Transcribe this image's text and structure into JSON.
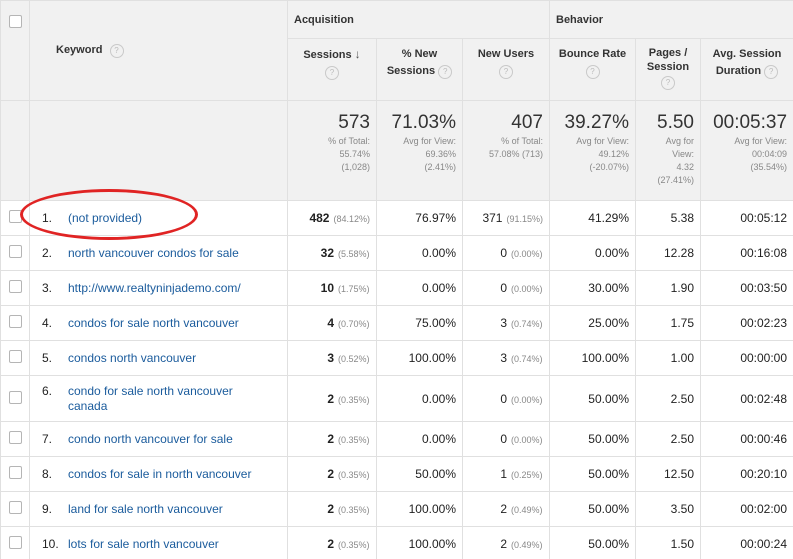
{
  "header": {
    "keyword": "Keyword",
    "help": "?",
    "groups": {
      "acquisition": "Acquisition",
      "behavior": "Behavior"
    },
    "columns": {
      "sessions": "Sessions",
      "new_sessions_1": "% New",
      "new_sessions_2": "Sessions",
      "new_users": "New Users",
      "bounce_rate": "Bounce Rate",
      "pages_1": "Pages /",
      "pages_2": "Session",
      "duration_1": "Avg. Session",
      "duration_2": "Duration"
    },
    "sort_icon": "arrow-down-icon"
  },
  "totals": {
    "sessions": {
      "value": "573",
      "l1": "% of Total:",
      "l2": "55.74%",
      "l3": "(1,028)"
    },
    "new_sessions": {
      "value": "71.03%",
      "l1": "Avg for View:",
      "l2": "69.36%",
      "l3": "(2.41%)"
    },
    "new_users": {
      "value": "407",
      "l1": "% of Total:",
      "l2": "57.08% (713)"
    },
    "bounce_rate": {
      "value": "39.27%",
      "l1": "Avg for View:",
      "l2": "49.12%",
      "l3": "(-20.07%)"
    },
    "pages": {
      "value": "5.50",
      "l1": "Avg for",
      "l2": "View:",
      "l3": "4.32",
      "l4": "(27.41%)"
    },
    "duration": {
      "value": "00:05:37",
      "l1": "Avg for View:",
      "l2": "00:04:09",
      "l3": "(35.54%)"
    }
  },
  "rows": [
    {
      "idx": "1.",
      "keyword": "(not provided)",
      "sessions": "482",
      "sessions_pct": "(84.12%)",
      "new_sessions": "76.97%",
      "new_users": "371",
      "new_users_pct": "(91.15%)",
      "bounce": "41.29%",
      "pages": "5.38",
      "duration": "00:05:12"
    },
    {
      "idx": "2.",
      "keyword": "north vancouver condos for sale",
      "sessions": "32",
      "sessions_pct": "(5.58%)",
      "new_sessions": "0.00%",
      "new_users": "0",
      "new_users_pct": "(0.00%)",
      "bounce": "0.00%",
      "pages": "12.28",
      "duration": "00:16:08"
    },
    {
      "idx": "3.",
      "keyword": "http://www.realtyninjademo.com/",
      "sessions": "10",
      "sessions_pct": "(1.75%)",
      "new_sessions": "0.00%",
      "new_users": "0",
      "new_users_pct": "(0.00%)",
      "bounce": "30.00%",
      "pages": "1.90",
      "duration": "00:03:50"
    },
    {
      "idx": "4.",
      "keyword": "condos for sale north vancouver",
      "sessions": "4",
      "sessions_pct": "(0.70%)",
      "new_sessions": "75.00%",
      "new_users": "3",
      "new_users_pct": "(0.74%)",
      "bounce": "25.00%",
      "pages": "1.75",
      "duration": "00:02:23"
    },
    {
      "idx": "5.",
      "keyword": "condos north vancouver",
      "sessions": "3",
      "sessions_pct": "(0.52%)",
      "new_sessions": "100.00%",
      "new_users": "3",
      "new_users_pct": "(0.74%)",
      "bounce": "100.00%",
      "pages": "1.00",
      "duration": "00:00:00"
    },
    {
      "idx": "6.",
      "keyword": "condo for sale north vancouver canada",
      "sessions": "2",
      "sessions_pct": "(0.35%)",
      "new_sessions": "0.00%",
      "new_users": "0",
      "new_users_pct": "(0.00%)",
      "bounce": "50.00%",
      "pages": "2.50",
      "duration": "00:02:48"
    },
    {
      "idx": "7.",
      "keyword": "condo north vancouver for sale",
      "sessions": "2",
      "sessions_pct": "(0.35%)",
      "new_sessions": "0.00%",
      "new_users": "0",
      "new_users_pct": "(0.00%)",
      "bounce": "50.00%",
      "pages": "2.50",
      "duration": "00:00:46"
    },
    {
      "idx": "8.",
      "keyword": "condos for sale in north vancouver",
      "sessions": "2",
      "sessions_pct": "(0.35%)",
      "new_sessions": "50.00%",
      "new_users": "1",
      "new_users_pct": "(0.25%)",
      "bounce": "50.00%",
      "pages": "12.50",
      "duration": "00:20:10"
    },
    {
      "idx": "9.",
      "keyword": "land for sale north vancouver",
      "sessions": "2",
      "sessions_pct": "(0.35%)",
      "new_sessions": "100.00%",
      "new_users": "2",
      "new_users_pct": "(0.49%)",
      "bounce": "50.00%",
      "pages": "3.50",
      "duration": "00:02:00"
    },
    {
      "idx": "10.",
      "keyword": "lots for sale north vancouver",
      "sessions": "2",
      "sessions_pct": "(0.35%)",
      "new_sessions": "100.00%",
      "new_users": "2",
      "new_users_pct": "(0.49%)",
      "bounce": "50.00%",
      "pages": "1.50",
      "duration": "00:00:24"
    }
  ],
  "colors": {
    "link": "#1a5b9c",
    "highlight_circle": "#e02424",
    "header_bg": "#f1f1f1"
  }
}
